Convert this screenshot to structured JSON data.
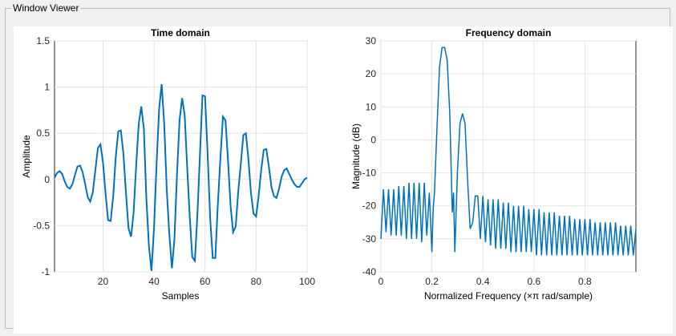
{
  "window": {
    "title": "Window Viewer"
  },
  "chart_data": [
    {
      "type": "line",
      "title": "Time domain",
      "xlabel": "Samples",
      "ylabel": "Amplitude",
      "xlim": [
        1,
        100
      ],
      "ylim": [
        -1,
        1.5
      ],
      "xticks": [
        20,
        40,
        60,
        80,
        100
      ],
      "yticks": [
        -1,
        -0.5,
        0,
        0.5,
        1,
        1.5
      ],
      "xtick_labels": [
        "20",
        "40",
        "60",
        "80",
        "100"
      ],
      "ytick_labels": [
        "-1",
        "-0.5",
        "0",
        "0.5",
        "1",
        "1.5"
      ],
      "grid": true,
      "color": "#0072bd",
      "series": [
        {
          "x": [
            1,
            2,
            3,
            4,
            5,
            6,
            7,
            8,
            9,
            10,
            11,
            12,
            13,
            14,
            15,
            16,
            17,
            18,
            19,
            20,
            21,
            22,
            23,
            24,
            25,
            26,
            27,
            28,
            29,
            30,
            31,
            32,
            33,
            34,
            35,
            36,
            37,
            38,
            39,
            40,
            41,
            42,
            43,
            44,
            45,
            46,
            47,
            48,
            49,
            50,
            51,
            52,
            53,
            54,
            55,
            56,
            57,
            58,
            59,
            60,
            61,
            62,
            63,
            64,
            65,
            66,
            67,
            68,
            69,
            70,
            71,
            72,
            73,
            74,
            75,
            76,
            77,
            78,
            79,
            80,
            81,
            82,
            83,
            84,
            85,
            86,
            87,
            88,
            89,
            90,
            91,
            92,
            93,
            94,
            95,
            96,
            97,
            98,
            99,
            100
          ],
          "y": [
            0.02,
            0.07,
            0.09,
            0.06,
            -0.02,
            -0.08,
            -0.1,
            -0.05,
            0.05,
            0.14,
            0.15,
            0.08,
            -0.05,
            -0.19,
            -0.24,
            -0.14,
            0.1,
            0.34,
            0.38,
            0.18,
            -0.15,
            -0.44,
            -0.45,
            -0.18,
            0.25,
            0.52,
            0.53,
            0.28,
            -0.15,
            -0.53,
            -0.62,
            -0.36,
            0.15,
            0.6,
            0.79,
            0.55,
            -0.2,
            -0.72,
            -0.99,
            -0.52,
            0.18,
            0.77,
            1.03,
            0.6,
            -0.12,
            -0.6,
            -0.96,
            -0.65,
            0.05,
            0.64,
            0.88,
            0.7,
            0.12,
            -0.4,
            -0.84,
            -0.88,
            -0.38,
            0.28,
            0.91,
            0.9,
            0.28,
            -0.42,
            -0.85,
            -0.85,
            -0.28,
            0.22,
            0.68,
            0.64,
            0.2,
            -0.28,
            -0.57,
            -0.51,
            -0.13,
            0.17,
            0.48,
            0.5,
            0.22,
            -0.15,
            -0.37,
            -0.4,
            -0.18,
            0.1,
            0.32,
            0.33,
            0.14,
            -0.08,
            -0.18,
            -0.2,
            -0.1,
            0.03,
            0.1,
            0.12,
            0.06,
            0.0,
            -0.05,
            -0.08,
            -0.08,
            -0.04,
            0.0,
            0.02
          ]
        }
      ]
    },
    {
      "type": "line",
      "title": "Frequency domain",
      "xlabel": "Normalized Frequency  (×π rad/sample)",
      "ylabel": "Magnitude (dB)",
      "xlim": [
        0,
        1
      ],
      "ylim": [
        -40,
        30
      ],
      "xticks": [
        0,
        0.2,
        0.4,
        0.6,
        0.8
      ],
      "yticks": [
        -40,
        -30,
        -20,
        -10,
        0,
        10,
        20,
        30
      ],
      "xtick_labels": [
        "0",
        "0.2",
        "0.4",
        "0.6",
        "0.8"
      ],
      "ytick_labels": [
        "-40",
        "-30",
        "-20",
        "-10",
        "0",
        "10",
        "20",
        "30"
      ],
      "grid": true,
      "color": "#0072bd",
      "series": [
        {
          "x": [
            0,
            0.01,
            0.02,
            0.03,
            0.04,
            0.05,
            0.06,
            0.07,
            0.08,
            0.09,
            0.1,
            0.11,
            0.12,
            0.13,
            0.14,
            0.15,
            0.16,
            0.17,
            0.18,
            0.19,
            0.2,
            0.205,
            0.21,
            0.22,
            0.23,
            0.24,
            0.25,
            0.26,
            0.27,
            0.28,
            0.285,
            0.29,
            0.3,
            0.31,
            0.32,
            0.33,
            0.34,
            0.35,
            0.36,
            0.37,
            0.38,
            0.39,
            0.4,
            0.41,
            0.42,
            0.43,
            0.44,
            0.45,
            0.46,
            0.47,
            0.48,
            0.49,
            0.5,
            0.51,
            0.52,
            0.53,
            0.54,
            0.55,
            0.56,
            0.57,
            0.58,
            0.59,
            0.6,
            0.61,
            0.62,
            0.63,
            0.64,
            0.65,
            0.66,
            0.67,
            0.68,
            0.69,
            0.7,
            0.71,
            0.72,
            0.73,
            0.74,
            0.75,
            0.76,
            0.77,
            0.78,
            0.79,
            0.8,
            0.81,
            0.82,
            0.83,
            0.84,
            0.85,
            0.86,
            0.87,
            0.88,
            0.89,
            0.9,
            0.91,
            0.92,
            0.93,
            0.94,
            0.95,
            0.96,
            0.97,
            0.98,
            0.99,
            1.0
          ],
          "y": [
            -30,
            -15,
            -28,
            -15,
            -29,
            -15,
            -29,
            -14,
            -29,
            -14,
            -30,
            -13,
            -30,
            -13,
            -30,
            -13,
            -31,
            -13,
            -29,
            -16,
            -34,
            -21,
            -16,
            4,
            22,
            28,
            28,
            24,
            8,
            -22,
            -16,
            -34,
            -10,
            5,
            8,
            5,
            -12,
            -27,
            -25,
            -17,
            -17,
            -30,
            -17,
            -31,
            -18,
            -32,
            -18,
            -33,
            -18,
            -33,
            -19,
            -33,
            -19,
            -34,
            -20,
            -34,
            -20,
            -34,
            -20,
            -34,
            -21,
            -34,
            -21,
            -35,
            -21,
            -35,
            -22,
            -35,
            -22,
            -35,
            -22,
            -35,
            -23,
            -35,
            -23,
            -35,
            -23,
            -35,
            -24,
            -35,
            -24,
            -35,
            -24,
            -35,
            -24,
            -35,
            -25,
            -35,
            -25,
            -35,
            -25,
            -35,
            -25,
            -35,
            -25,
            -35,
            -26,
            -35,
            -26,
            -35,
            -26,
            -35,
            -27
          ]
        }
      ]
    }
  ]
}
